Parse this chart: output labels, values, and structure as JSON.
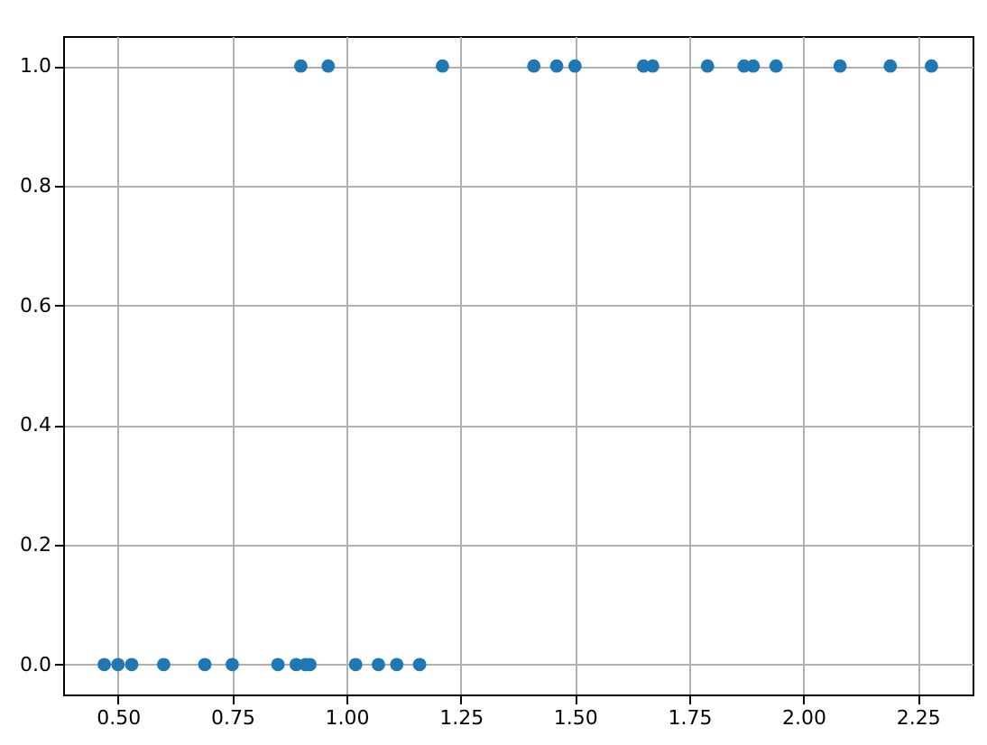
{
  "chart_data": {
    "type": "scatter",
    "xlim": [
      0.38,
      2.37
    ],
    "ylim": [
      -0.05,
      1.05
    ],
    "xticks": [
      {
        "value": 0.5,
        "label": "0.50"
      },
      {
        "value": 0.75,
        "label": "0.75"
      },
      {
        "value": 1.0,
        "label": "1.00"
      },
      {
        "value": 1.25,
        "label": "1.25"
      },
      {
        "value": 1.5,
        "label": "1.50"
      },
      {
        "value": 1.75,
        "label": "1.75"
      },
      {
        "value": 2.0,
        "label": "2.00"
      },
      {
        "value": 2.25,
        "label": "2.25"
      }
    ],
    "yticks": [
      {
        "value": 0,
        "label": "0.0"
      },
      {
        "value": 0.2,
        "label": "0.2"
      },
      {
        "value": 0.4,
        "label": "0.4"
      },
      {
        "value": 0.6,
        "label": "0.6"
      },
      {
        "value": 0.8,
        "label": "0.8"
      },
      {
        "value": 1,
        "label": "1.0"
      }
    ],
    "grid": true,
    "marker": "circle",
    "series": [
      {
        "color": "#1f77b4",
        "x": [
          0.47,
          0.5,
          0.53,
          0.6,
          0.69,
          0.75,
          0.85,
          0.89,
          0.91,
          0.92,
          1.02,
          1.07,
          1.11,
          1.16,
          0.9,
          0.96,
          1.21,
          1.41,
          1.46,
          1.5,
          1.65,
          1.67,
          1.79,
          1.87,
          1.89,
          1.94,
          2.08,
          2.19,
          2.28
        ],
        "values": [
          0,
          0,
          0,
          0,
          0,
          0,
          0,
          0,
          0,
          0,
          0,
          0,
          0,
          0,
          1,
          1,
          1,
          1,
          1,
          1,
          1,
          1,
          1,
          1,
          1,
          1,
          1,
          1,
          1
        ]
      }
    ]
  }
}
